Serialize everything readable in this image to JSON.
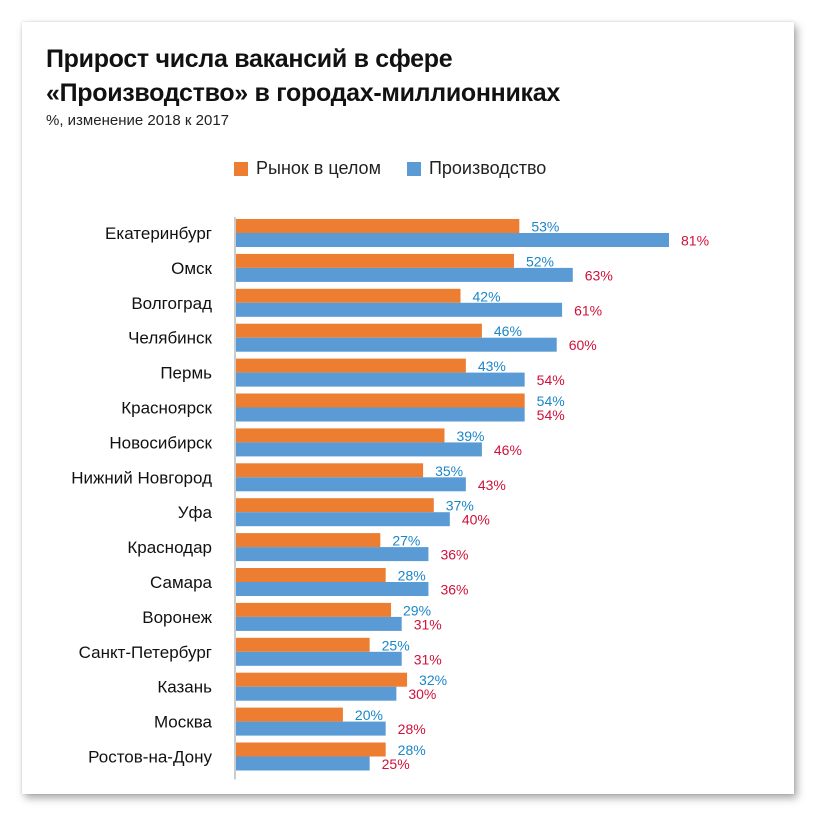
{
  "title_line1": "Прирост числа вакансий в сфере",
  "title_line2": "«Производство» в городах-миллионниках",
  "subtitle": "%, изменение 2018 к 2017",
  "colors": {
    "market_bar": "#ed7d31",
    "production_bar": "#5b9bd5",
    "market_label": "#1a86c8",
    "production_label": "#d0103a"
  },
  "chart_data": {
    "type": "bar",
    "orientation": "horizontal",
    "title": "Прирост числа вакансий в сфере «Производство» в городах-миллионниках",
    "subtitle": "%, изменение 2018 к 2017",
    "xlabel": "",
    "ylabel": "",
    "xlim": [
      0,
      81
    ],
    "grid": false,
    "legend_position": "top",
    "value_suffix": "%",
    "categories": [
      "Екатеринбург",
      "Омск",
      "Волгоград",
      "Челябинск",
      "Пермь",
      "Красноярск",
      "Новосибирск",
      "Нижний Новгород",
      "Уфа",
      "Краснодар",
      "Самара",
      "Воронеж",
      "Санкт-Петербург",
      "Казань",
      "Москва",
      "Ростов-на-Дону"
    ],
    "series": [
      {
        "name": "Рынок в целом",
        "values": [
          53,
          52,
          42,
          46,
          43,
          54,
          39,
          35,
          37,
          27,
          28,
          29,
          25,
          32,
          20,
          28
        ]
      },
      {
        "name": "Производство",
        "values": [
          81,
          63,
          61,
          60,
          54,
          54,
          46,
          43,
          40,
          36,
          36,
          31,
          31,
          30,
          28,
          25
        ]
      }
    ]
  }
}
